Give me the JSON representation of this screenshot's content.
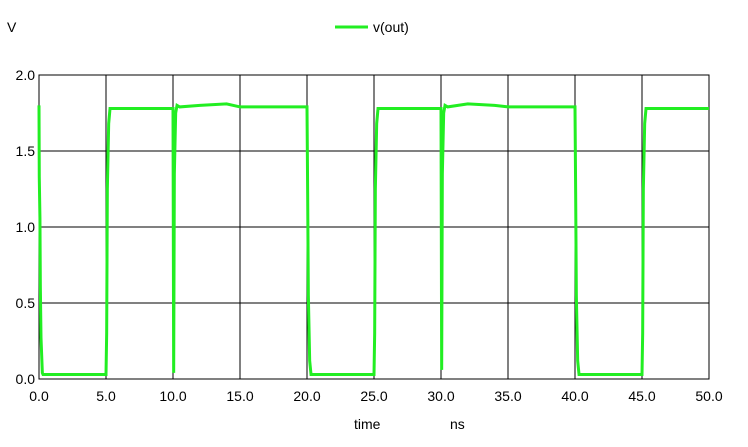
{
  "chart_data": {
    "type": "line",
    "ylabel": "V",
    "xlabel": "time",
    "xunit": "ns",
    "xlim": [
      0,
      50
    ],
    "ylim": [
      0,
      2
    ],
    "xticks": [
      "0.0",
      "5.0",
      "10.0",
      "15.0",
      "20.0",
      "25.0",
      "30.0",
      "35.0",
      "40.0",
      "45.0",
      "50.0"
    ],
    "yticks": [
      "0.0",
      "0.5",
      "1.0",
      "1.5",
      "2.0"
    ],
    "grid": true,
    "legend_position": "top-center",
    "series": [
      {
        "name": "v(out)",
        "color": "#22ee22",
        "x": [
          0.0,
          0.02,
          0.07,
          0.1,
          0.15,
          0.25,
          0.3,
          5.0,
          5.05,
          5.1,
          5.2,
          5.3,
          10.0,
          10.05,
          10.1,
          10.2,
          10.3,
          10.5,
          12.0,
          14.0,
          15.0,
          20.0,
          20.05,
          20.1,
          20.2,
          20.3,
          25.0,
          25.05,
          25.1,
          25.2,
          25.3,
          30.0,
          30.05,
          30.1,
          30.2,
          30.3,
          30.5,
          32.0,
          34.0,
          35.0,
          40.0,
          40.05,
          40.1,
          40.2,
          40.3,
          45.0,
          45.05,
          45.1,
          45.2,
          45.3,
          50.0
        ],
        "y": [
          1.8,
          1.33,
          1.06,
          0.61,
          0.27,
          0.04,
          0.03,
          0.03,
          0.3,
          1.25,
          1.68,
          1.78,
          1.78,
          0.04,
          1.35,
          1.75,
          1.8,
          1.79,
          1.8,
          1.81,
          1.79,
          1.79,
          1.21,
          0.55,
          0.12,
          0.03,
          0.03,
          0.3,
          1.25,
          1.68,
          1.78,
          1.78,
          0.06,
          1.35,
          1.75,
          1.8,
          1.79,
          1.81,
          1.8,
          1.79,
          1.79,
          1.21,
          0.55,
          0.12,
          0.03,
          0.03,
          0.3,
          1.25,
          1.68,
          1.78,
          1.78
        ]
      }
    ]
  }
}
